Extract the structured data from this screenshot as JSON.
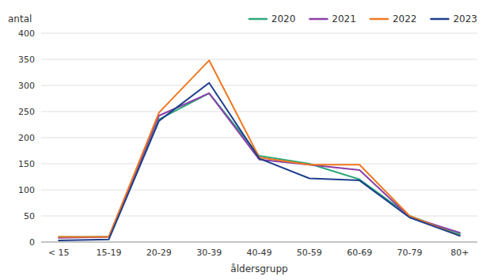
{
  "chart_data": {
    "type": "line",
    "xlabel": "åldersgrupp",
    "ylabel": "antal",
    "categories": [
      "< 15",
      "15-19",
      "20-29",
      "30-39",
      "40-49",
      "50-59",
      "60-69",
      "70-79",
      "80+"
    ],
    "series": [
      {
        "name": "2020",
        "color": "#2aaa7a",
        "values": [
          10,
          10,
          235,
          285,
          165,
          150,
          120,
          50,
          15
        ]
      },
      {
        "name": "2021",
        "color": "#8b3fa8",
        "values": [
          8,
          10,
          242,
          285,
          158,
          148,
          138,
          48,
          18
        ]
      },
      {
        "name": "2022",
        "color": "#f07820",
        "values": [
          10,
          10,
          248,
          348,
          162,
          148,
          148,
          50,
          12
        ]
      },
      {
        "name": "2023",
        "color": "#1f3f8c",
        "values": [
          3,
          5,
          232,
          305,
          160,
          122,
          118,
          47,
          12
        ]
      }
    ],
    "ylim": [
      0,
      400
    ],
    "yticks": [
      0,
      50,
      100,
      150,
      200,
      250,
      300,
      350,
      400
    ],
    "grid": true,
    "legend": "upper right"
  }
}
